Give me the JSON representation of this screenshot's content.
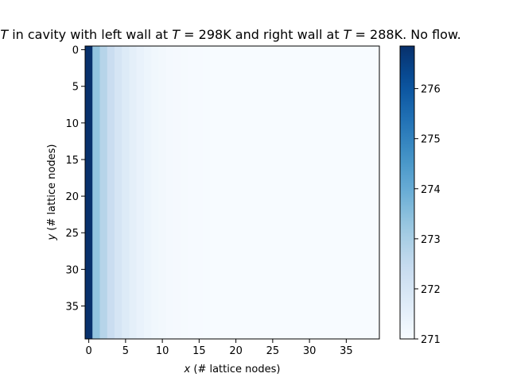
{
  "chart_data": {
    "type": "heatmap",
    "title": "T in cavity with left wall at T = 298K and right wall at T = 288K. No flow.",
    "xlabel": "x (# lattice nodes)",
    "ylabel": "y (# lattice nodes)",
    "grid": false,
    "nx": 40,
    "ny": 40,
    "x_ticks": [
      0,
      5,
      10,
      15,
      20,
      25,
      30,
      35
    ],
    "y_ticks": [
      0,
      5,
      10,
      15,
      20,
      25,
      30,
      35
    ],
    "y_axis_inverted": true,
    "colormap": "Blues",
    "colorbar": {
      "min": 271.0,
      "max": 276.85,
      "ticks": [
        271,
        272,
        273,
        274,
        275,
        276
      ],
      "placement": "right"
    },
    "column_values": [
      276.85,
      273.35,
      272.75,
      272.35,
      272.0,
      271.75,
      271.55,
      271.4,
      271.28,
      271.2,
      271.14,
      271.1,
      271.07,
      271.05,
      271.035,
      271.025,
      271.018,
      271.013,
      271.009,
      271.006,
      271.004,
      271.003,
      271.002,
      271.001,
      271.0,
      271.0,
      271.0,
      271.0,
      271.0,
      271.0,
      271.0,
      271.0,
      271.0,
      271.0,
      271.0,
      271.0,
      271.0,
      271.0,
      271.0,
      271.0
    ],
    "rows_identical": true
  }
}
